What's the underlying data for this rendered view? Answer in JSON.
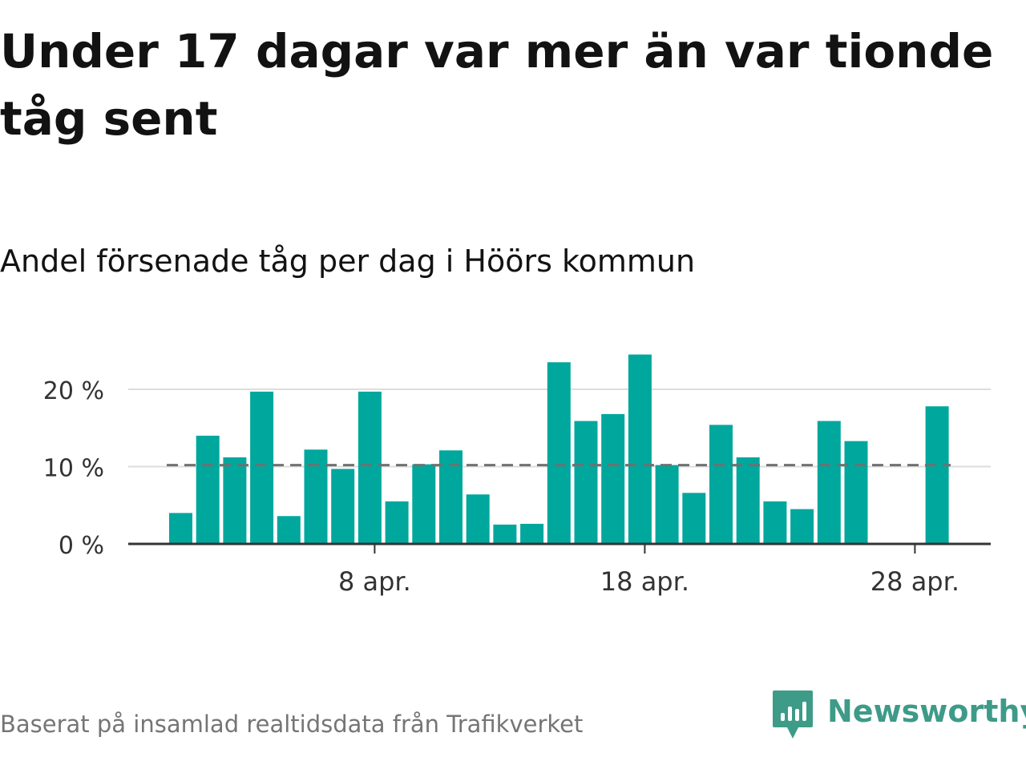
{
  "headline": "Under 17 dagar var mer än var tionde tåg sent",
  "source": "Baserat på insamlad realtidsdata från Trafikverket",
  "brand": {
    "name": "Newsworthy",
    "color": "#3d9b88"
  },
  "chart_data": {
    "type": "bar",
    "title": "Andel försenade tåg per dag i Höörs kommun",
    "xlabel": "",
    "ylabel": "",
    "ylim": [
      0,
      26
    ],
    "y_ticks": [
      0,
      10,
      20
    ],
    "y_tick_labels": [
      "0 %",
      "10 %",
      "20 %"
    ],
    "x_ticks": [
      8,
      18,
      28
    ],
    "x_tick_labels": [
      "8 apr.",
      "18 apr.",
      "28 apr."
    ],
    "x": [
      1,
      2,
      3,
      4,
      5,
      6,
      7,
      8,
      9,
      10,
      11,
      12,
      13,
      14,
      15,
      16,
      17,
      18,
      19,
      20,
      21,
      22,
      23,
      24,
      25,
      26,
      27,
      28,
      29,
      30
    ],
    "values": [
      4.0,
      14.0,
      11.2,
      19.7,
      3.6,
      12.2,
      9.7,
      19.7,
      5.5,
      10.3,
      12.1,
      6.4,
      2.5,
      2.6,
      23.5,
      15.9,
      16.8,
      24.5,
      10.2,
      6.6,
      15.4,
      11.2,
      5.5,
      4.5,
      15.9,
      13.3,
      0,
      0,
      17.8,
      0
    ],
    "reference_line": 10.2,
    "grid": true,
    "colors": {
      "bar": "#00a79d",
      "reference_line": "#707070",
      "grid": "#dddddd",
      "axis": "#333333"
    }
  }
}
